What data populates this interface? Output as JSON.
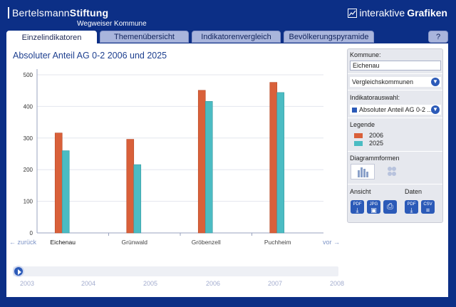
{
  "header": {
    "brand_left_light": "Bertelsmann",
    "brand_left_bold": "Stiftung",
    "brand_sub": "Wegweiser Kommune",
    "brand_right_light": "interaktive",
    "brand_right_bold": "Grafiken",
    "brand_right_icon": "chart-line-icon"
  },
  "tabs": [
    {
      "label": "Einzelindikatoren",
      "active": true
    },
    {
      "label": "Themenübersicht",
      "active": false
    },
    {
      "label": "Indikatorenvergleich",
      "active": false
    },
    {
      "label": "Bevölkerungspyramide",
      "active": false
    }
  ],
  "help_label": "?",
  "chart_title": "Absoluter Anteil AG 0-2 2006 und 2025",
  "chart_data": {
    "type": "bar",
    "title": "Absoluter Anteil AG 0-2 2006 und 2025",
    "categories": [
      "Eichenau",
      "Grünwald",
      "Gröbenzell",
      "Puchheim"
    ],
    "series": [
      {
        "name": "2006",
        "values": [
          316,
          296,
          451,
          476
        ],
        "color": "#d9603a"
      },
      {
        "name": "2025",
        "values": [
          260,
          216,
          416,
          444
        ],
        "color": "#4bbcc3"
      }
    ],
    "ylim": [
      0,
      500
    ],
    "yticks": [
      "0",
      "100",
      "200",
      "300",
      "400",
      "500"
    ],
    "grid": true,
    "legend": "right-panel"
  },
  "navigation": {
    "back": "← zurück",
    "forward": "vor →"
  },
  "timeline": {
    "years": [
      "2003",
      "2004",
      "2005",
      "2006",
      "2007",
      "2008"
    ],
    "play_icon": "play-icon"
  },
  "sidebar": {
    "kommune_label": "Kommune:",
    "kommune_value": "Eichenau",
    "vergleich_label": "Vergleichskommunen",
    "indikator_label": "Indikatorauswahl:",
    "indikator_value": "Absoluter Anteil AG 0-2 ...",
    "legende_label": "Legende",
    "legend_2006": "2006",
    "legend_2025": "2025",
    "diagramm_label": "Diagrammformen",
    "ansicht_label": "Ansicht",
    "daten_label": "Daten",
    "btn_pdf": "PDF",
    "btn_jpg": "JPG",
    "btn_csv": "CSV",
    "colors": {
      "2006": "#d9603a",
      "2025": "#4bbcc3"
    }
  }
}
